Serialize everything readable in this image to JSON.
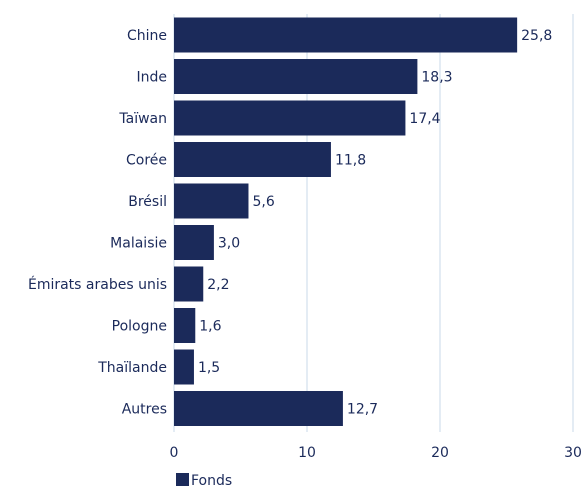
{
  "chart_data": {
    "type": "bar",
    "orientation": "horizontal",
    "categories": [
      "Chine",
      "Inde",
      "Taïwan",
      "Corée",
      "Brésil",
      "Malaisie",
      "Émirats arabes unis",
      "Pologne",
      "Thaïlande",
      "Autres"
    ],
    "series": [
      {
        "name": "Fonds",
        "values": [
          25.8,
          18.3,
          17.4,
          11.8,
          5.6,
          3.0,
          2.2,
          1.6,
          1.5,
          12.7
        ],
        "labels": [
          "25,8",
          "18,3",
          "17,4",
          "11,8",
          "5,6",
          "3,0",
          "2,2",
          "1,6",
          "1,5",
          "12,7"
        ]
      }
    ],
    "xlim": [
      0,
      30
    ],
    "xticks": [
      0,
      10,
      20,
      30
    ],
    "xtick_labels": [
      "0",
      "10",
      "20",
      "30"
    ],
    "grid": "vertical",
    "legend_position": "bottom-left",
    "colors": {
      "bar": "#1b2a5a",
      "grid": "#c8d8e8",
      "text": "#1b2a5a"
    }
  }
}
